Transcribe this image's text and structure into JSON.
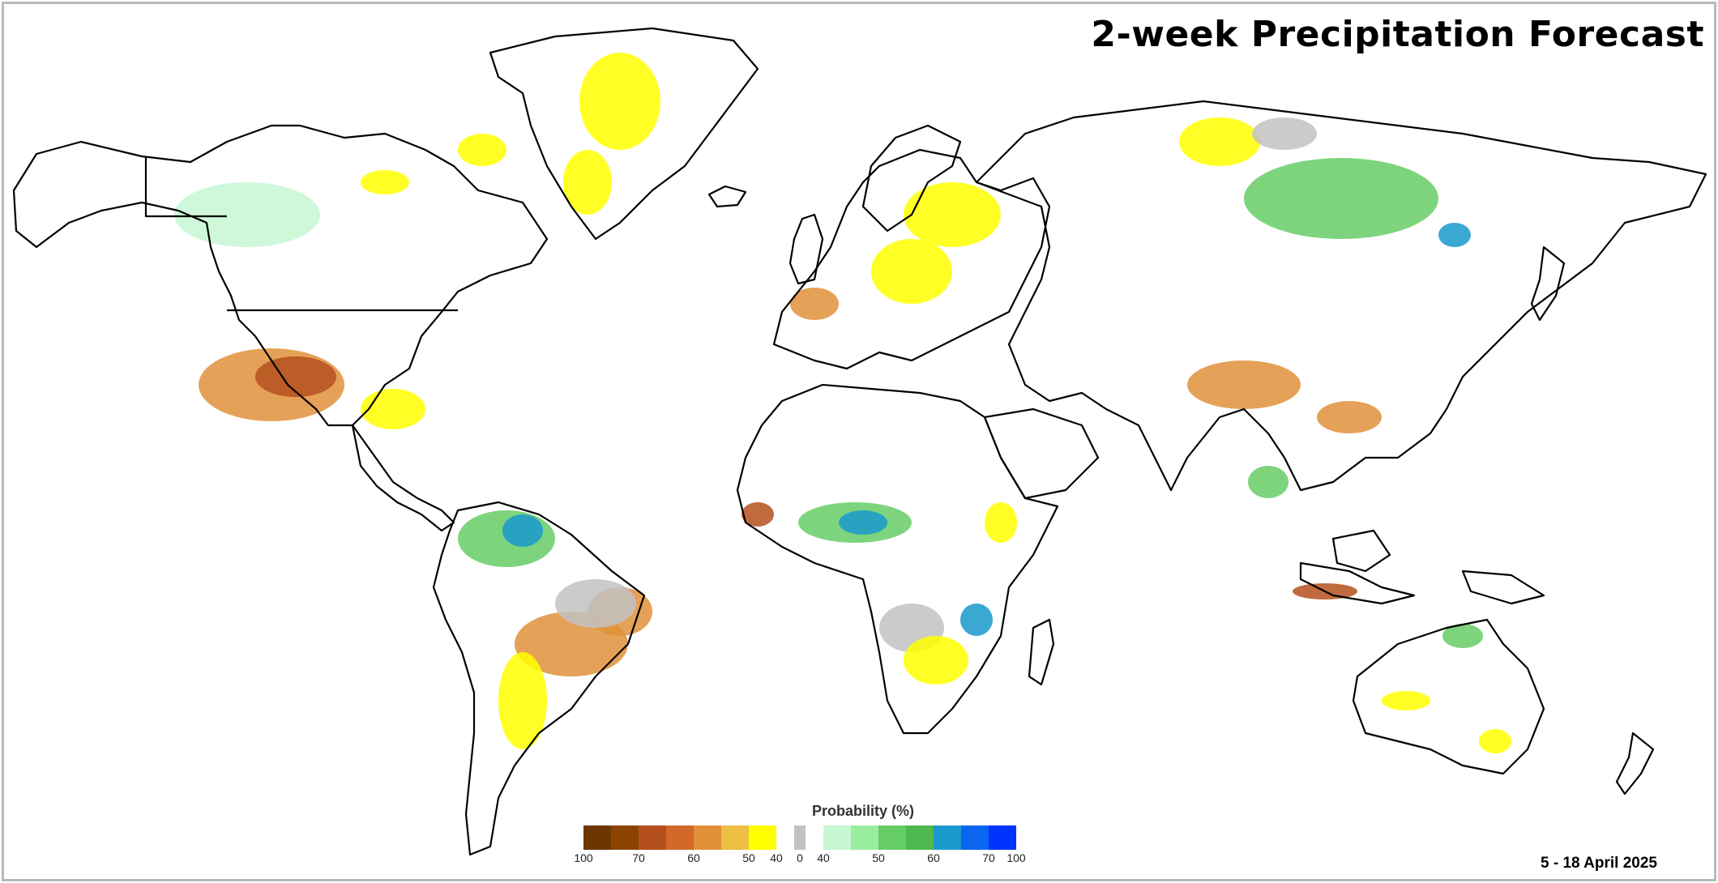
{
  "title": "2-week Precipitation Forecast",
  "date_range": "5 - 18 April 2025",
  "legend": {
    "title": "Probability (%)",
    "below_colors": [
      "#6b3600",
      "#8c4300",
      "#b5501d",
      "#d3682a",
      "#e0913a",
      "#ebc044",
      "#ffff00"
    ],
    "neutral_color": "#c2c2c2",
    "above_colors": [
      "#c6f7d2",
      "#99ee9e",
      "#66cc66",
      "#4fb84f",
      "#1999cc",
      "#0a66ee",
      "#0033ff"
    ],
    "ticks": [
      "100",
      "70",
      "60",
      "50",
      "40",
      "0",
      "40",
      "50",
      "60",
      "70",
      "100"
    ]
  },
  "map_colors": {
    "land_outline": "#000000",
    "yellow": "#ffff00",
    "orange": "#e0913a",
    "brown": "#b5501d",
    "grey": "#c2c2c2",
    "light_green": "#c6f7d2",
    "green": "#66cc66",
    "blue": "#1999cc"
  }
}
